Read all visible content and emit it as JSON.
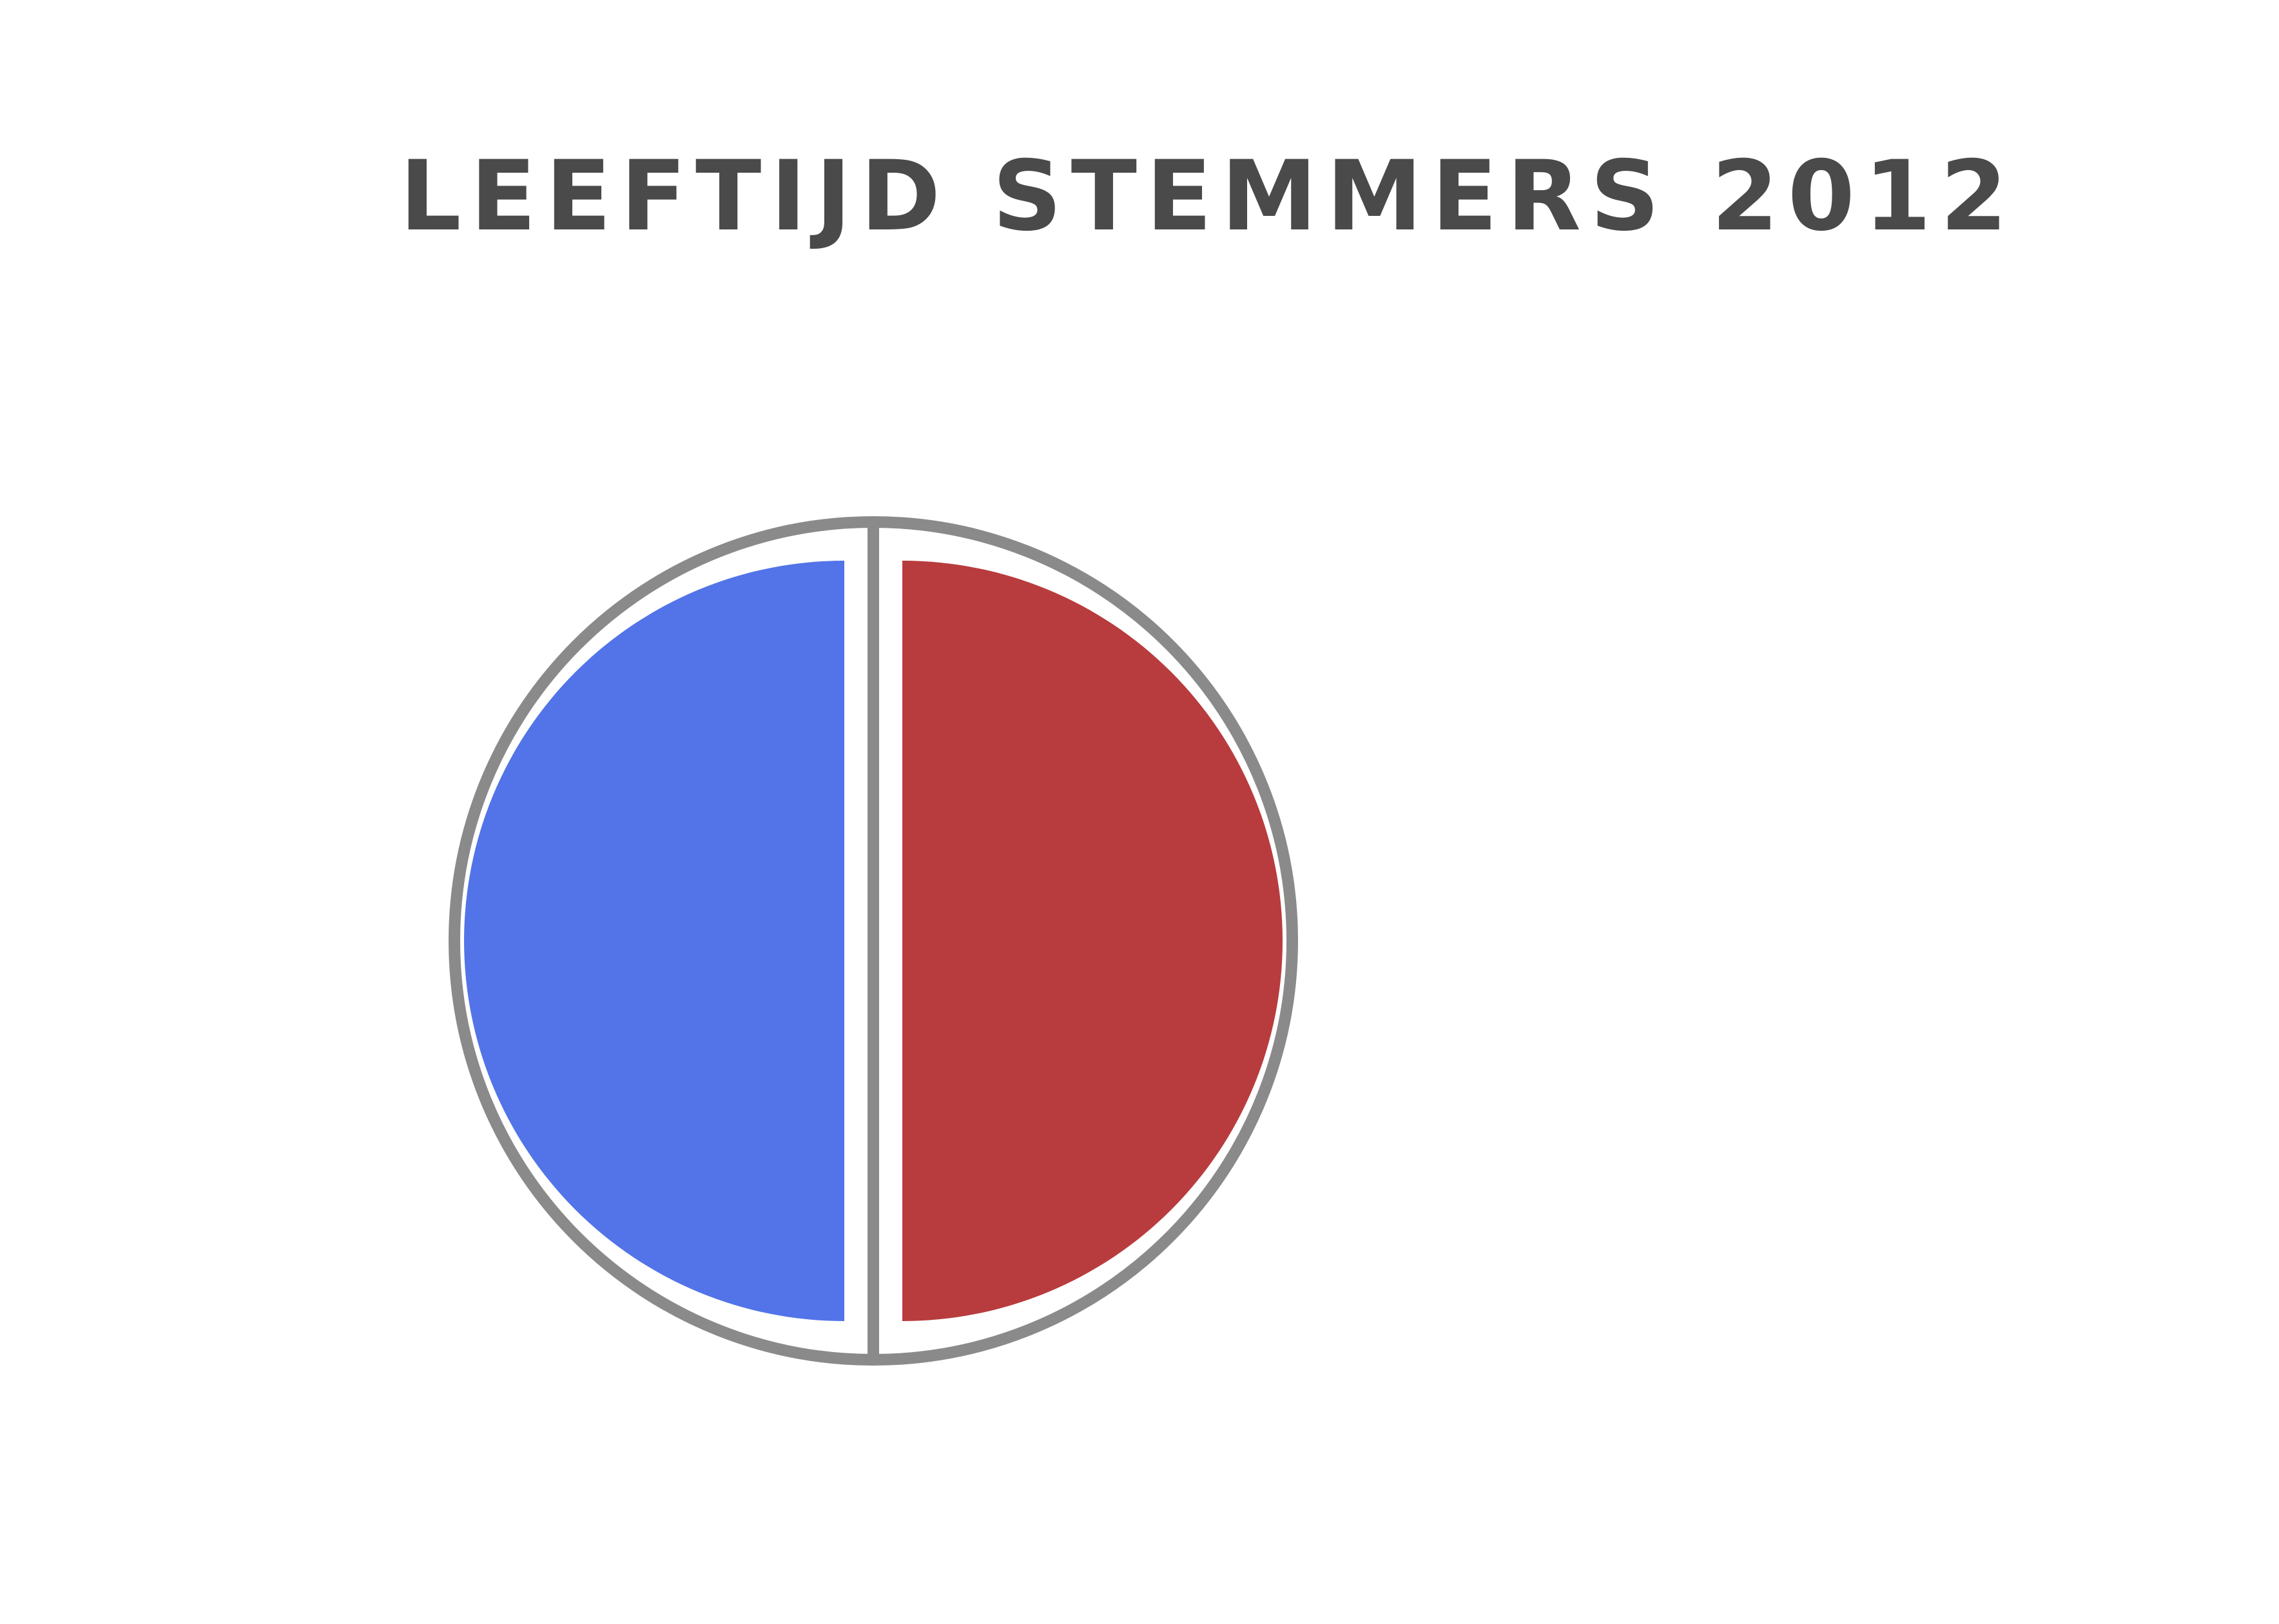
{
  "chart_data": {
    "type": "pie",
    "title": "LEEFTIJD STEMMERS 2012",
    "slices": [
      {
        "value": 50,
        "color": "#5274e8"
      },
      {
        "value": 50,
        "color": "#b83c3e"
      }
    ],
    "legend": "none"
  },
  "colors": {
    "outline": "#8a8a8a",
    "title": "#4a4a4a"
  }
}
